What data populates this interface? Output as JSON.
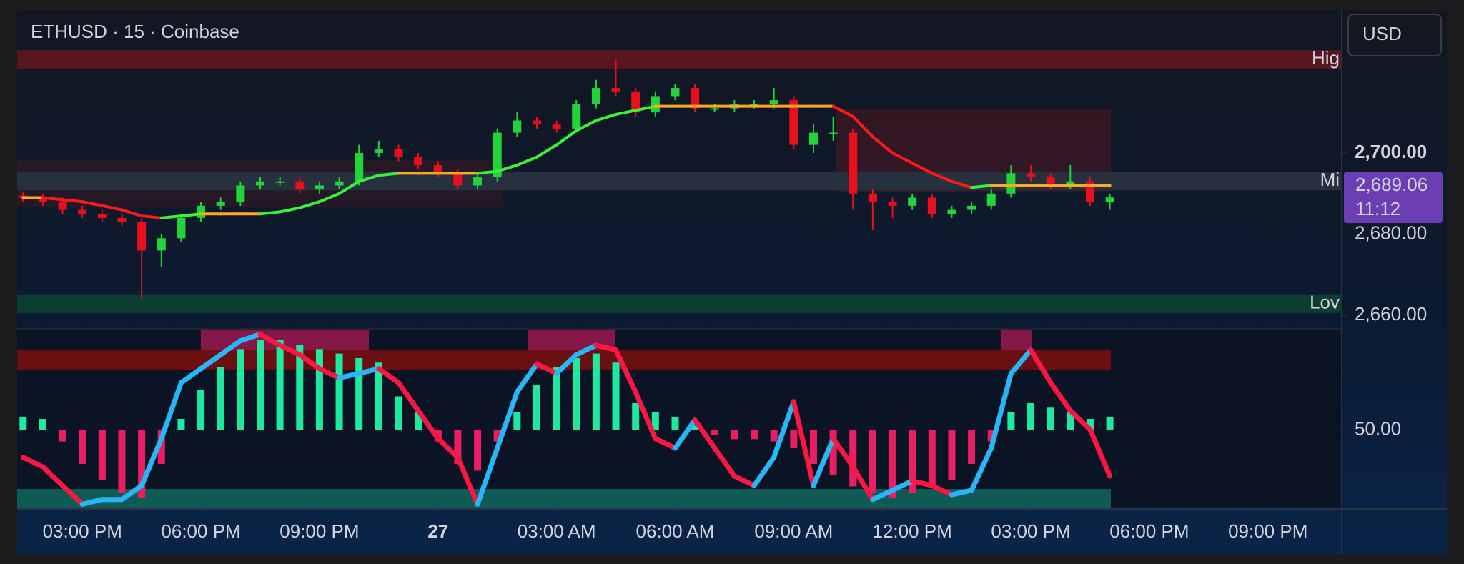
{
  "chart_data": {
    "type": "candlestick",
    "title": "ETHUSD · 15 · Coinbase",
    "currency": "USD",
    "x": [
      -1.5,
      -1,
      -0.5,
      0,
      0.5,
      1,
      1.5,
      2,
      2.5,
      3,
      3.5,
      4,
      4.5,
      5,
      5.5,
      6,
      6.5,
      7,
      7.5,
      8,
      8.5,
      9,
      9.5,
      10,
      10.5,
      11,
      11.5,
      12,
      12.5,
      13,
      13.5,
      14,
      14.5,
      15,
      15.5,
      16,
      16.5,
      17,
      17.5,
      18,
      18.5,
      19,
      19.5,
      20,
      20.5,
      21,
      21.5,
      22,
      22.5,
      23,
      23.5,
      24,
      24.5,
      25,
      25.5,
      26
    ],
    "xlim": [
      -1.65,
      31.85
    ],
    "xticks": [
      {
        "value": 0,
        "label": "03:00 PM"
      },
      {
        "value": 3,
        "label": "06:00 PM"
      },
      {
        "value": 6,
        "label": "09:00 PM"
      },
      {
        "value": 9,
        "label": "27"
      },
      {
        "value": 12,
        "label": "03:00 AM"
      },
      {
        "value": 15,
        "label": "06:00 AM"
      },
      {
        "value": 18,
        "label": "09:00 AM"
      },
      {
        "value": 21,
        "label": "12:00 PM"
      },
      {
        "value": 24,
        "label": "03:00 PM"
      },
      {
        "value": 27,
        "label": "06:00 PM"
      },
      {
        "value": 30,
        "label": "09:00 PM"
      }
    ],
    "open": [
      2689.5,
      2689,
      2688,
      2686,
      2685,
      2684,
      2683,
      2676,
      2679,
      2684,
      2687,
      2688,
      2692,
      2693,
      2693,
      2691,
      2692,
      2693,
      2700,
      2701,
      2699,
      2697,
      2695,
      2692,
      2694,
      2705,
      2708,
      2707,
      2706,
      2712,
      2716,
      2715,
      2710,
      2714,
      2716,
      2711,
      2711,
      2712,
      2712,
      2713,
      2702,
      2705,
      2705,
      2690,
      2688,
      2687,
      2689,
      2685,
      2686,
      2687,
      2690,
      2695,
      2694,
      2692,
      2693,
      2688
    ],
    "high": [
      2690.5,
      2690,
      2689,
      2687,
      2686,
      2685,
      2684,
      2680,
      2685,
      2688,
      2689,
      2693,
      2694,
      2694,
      2694,
      2693,
      2694,
      2702,
      2703,
      2702,
      2700,
      2698,
      2696,
      2695,
      2706,
      2710,
      2709,
      2708,
      2713,
      2718,
      2723,
      2716,
      2715,
      2717,
      2717,
      2712,
      2713,
      2713,
      2716,
      2714,
      2707,
      2709,
      2706,
      2691,
      2689,
      2690,
      2690,
      2687,
      2688,
      2691,
      2697,
      2697,
      2695,
      2697,
      2694,
      2690
    ],
    "low": [
      2688,
      2687,
      2685,
      2684,
      2683,
      2682,
      2664,
      2672,
      2678,
      2683,
      2686,
      2687,
      2691,
      2692,
      2690,
      2690,
      2691,
      2692,
      2699,
      2698,
      2696,
      2694,
      2691,
      2691,
      2693,
      2704,
      2706,
      2705,
      2705,
      2711,
      2714,
      2709,
      2709,
      2713,
      2710,
      2710,
      2710,
      2711,
      2711,
      2701,
      2700,
      2703,
      2686,
      2681,
      2684,
      2686,
      2684,
      2684,
      2685,
      2686,
      2689,
      2693,
      2691,
      2691,
      2687,
      2686
    ],
    "close": [
      2689,
      2688,
      2686,
      2685,
      2684,
      2683,
      2676,
      2679,
      2684,
      2687,
      2688,
      2692,
      2693,
      2693,
      2691,
      2692,
      2693,
      2700,
      2701,
      2699,
      2697,
      2695,
      2692,
      2694,
      2705,
      2708,
      2707,
      2706,
      2712,
      2716,
      2715,
      2710,
      2714,
      2716,
      2711,
      2711,
      2712,
      2712,
      2713,
      2702,
      2705,
      2705,
      2690,
      2688,
      2687,
      2689,
      2685,
      2686,
      2687,
      2690,
      2695,
      2694,
      2692,
      2693,
      2688,
      2689.06
    ],
    "up_color": "#22d33a",
    "down_color": "#e8101c",
    "ylim": [
      2656.7,
      2735.2
    ],
    "yticks": [
      {
        "value": 2660,
        "label": "2,660.00"
      },
      {
        "value": 2680,
        "label": "2,680.00"
      },
      {
        "value": 2700,
        "label": "2,700.00"
      }
    ],
    "last_price": {
      "value": 2689.06,
      "label": "2,689.06"
    },
    "countdown": "11:12",
    "last_price_color": "#6b3fb3",
    "zones": [
      {
        "label": "Hig",
        "from": 2720.7,
        "to": 2725.3,
        "color": "#5a1620"
      },
      {
        "label": "Mi",
        "from": 2690.8,
        "to": 2695.4,
        "color": "#27303f"
      },
      {
        "label": "Lov",
        "from": 2660.6,
        "to": 2665.2,
        "color": "#0c3d33"
      }
    ],
    "trend": {
      "values": [
        2689,
        2689,
        2688.5,
        2688,
        2687,
        2686,
        2684.5,
        2684,
        2684.5,
        2685,
        2685,
        2685,
        2685,
        2685.5,
        2686.5,
        2688,
        2690,
        2693,
        2694.5,
        2695,
        2695,
        2695,
        2695,
        2695,
        2695.5,
        2697,
        2699,
        2702,
        2705.5,
        2708,
        2709.5,
        2710.5,
        2711.5,
        2711.5,
        2711.5,
        2711.5,
        2711.5,
        2711.5,
        2711.5,
        2711.5,
        2711.5,
        2711.5,
        2709,
        2704,
        2700,
        2697.5,
        2695,
        2693,
        2691.5,
        2692,
        2692,
        2692,
        2692,
        2692,
        2692,
        2692
      ],
      "up_color": "#3cf03c",
      "down_color": "#ff1a1a",
      "flat_color": "#ffa726"
    },
    "oscillator": {
      "ylim": [
        15,
        95
      ],
      "yticks": [
        {
          "value": 50,
          "label": "50.00"
        }
      ],
      "histogram": {
        "values": [
          56,
          55,
          45,
          35,
          28,
          22,
          20,
          35,
          55,
          68,
          78,
          86,
          90,
          90,
          88,
          86,
          84,
          82,
          80,
          65,
          58,
          45,
          35,
          32,
          45,
          58,
          70,
          78,
          82,
          84,
          80,
          62,
          58,
          56,
          52,
          48,
          46,
          46,
          45,
          42,
          35,
          30,
          25,
          22,
          20,
          22,
          25,
          28,
          35,
          45,
          58,
          62,
          60,
          58,
          55,
          56
        ],
        "up_color": "#1de9a0",
        "down_color": "#e91e63"
      },
      "line": {
        "values": [
          37.9,
          33.7,
          25.4,
          17.1,
          19.2,
          19.2,
          25.4,
          46.2,
          71.1,
          77.3,
          83.5,
          89.7,
          92.6,
          87.7,
          83.5,
          77.3,
          73.2,
          75.2,
          77.3,
          71.1,
          58.6,
          46.2,
          37.9,
          17.1,
          42.0,
          66.9,
          79.4,
          75.2,
          83.5,
          87.7,
          85.6,
          66.9,
          46.2,
          42.0,
          54.5,
          42.0,
          29.6,
          25.4,
          37.9,
          62.7,
          25.4,
          46.2,
          33.7,
          19.2,
          23.3,
          27.5,
          25.4,
          21.3,
          23.3,
          42.0,
          75.2,
          85.6,
          71.1,
          58.6,
          50.3,
          29.6
        ],
        "up_color": "#29b6f6",
        "down_color": "#ff1744"
      }
    }
  }
}
